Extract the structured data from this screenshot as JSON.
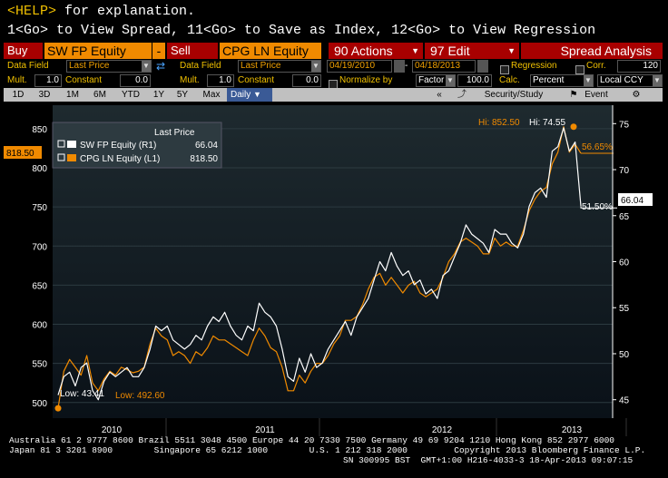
{
  "help": {
    "key": "<HELP>",
    "text": " for explanation.",
    "line2": "1<Go> to View Spread, 11<Go> to Save as Index, 12<Go> to View Regression"
  },
  "toolbar": {
    "buy_label": "Buy",
    "ticker1": "SW FP Equity",
    "minus": "-",
    "sell_label": "Sell",
    "ticker2": "CPG LN Equity",
    "actions": "90 Actions",
    "edit": "97 Edit",
    "spread": "Spread Analysis"
  },
  "params": {
    "data_field_label": "Data Field",
    "data_field1": "Last Price",
    "data_field_label2": "Data Field",
    "data_field2": "Last Price",
    "start_date": "04/19/2010",
    "end_date": "04/18/2013",
    "regression_label": "Regression",
    "corr_label": "Corr.",
    "corr_value": "120",
    "mult_label": "Mult.",
    "mult1": "1.0",
    "constant_label": "Constant",
    "constant1": "0.0",
    "mult_label2": "Mult.",
    "mult2": "1.0",
    "constant_label2": "Constant",
    "constant2": "0.0",
    "normalize_label": "Normalize by",
    "factor": "Factor",
    "factor_value": "100.0",
    "calc_label": "Calc.",
    "calc_value": "Percent",
    "ccy": "Local CCY"
  },
  "tabs": [
    "1D",
    "3D",
    "1M",
    "6M",
    "YTD",
    "1Y",
    "5Y",
    "Max"
  ],
  "period": "Daily",
  "sec_study": "Security/Study",
  "event": "Event",
  "legend": {
    "title": "Last Price",
    "s1": "SW FP Equity  (R1)",
    "s1_val": "66.04",
    "s2": "CPG LN Equity  (L1)",
    "s2_val": "818.50"
  },
  "annotations": {
    "hi_left": "Hi: 852.50",
    "hi_right": "Hi: 74.55",
    "pct_high": "56.65%",
    "pct_low": "51.50%",
    "low_right": "Low: 43.41",
    "low_left": "Low: 492.60",
    "left_tag": "818.50",
    "right_tag": "66.04"
  },
  "chart_data": {
    "type": "line",
    "left_axis": {
      "ticks": [
        500,
        550,
        600,
        650,
        700,
        750,
        800,
        850
      ],
      "ylim": [
        480,
        880
      ]
    },
    "right_axis": {
      "ticks": [
        45,
        50,
        55,
        60,
        65,
        70,
        75
      ],
      "ylim": [
        43,
        77
      ]
    },
    "x_labels": [
      "2010",
      "2011",
      "2012",
      "2013"
    ],
    "series": [
      {
        "name": "SW FP Equity (R1)",
        "axis": "right",
        "color": "#ffffff",
        "values": [
          45.5,
          47.5,
          48,
          46.5,
          48.5,
          49,
          46,
          45,
          47,
          48,
          47.5,
          48,
          48.5,
          47.5,
          47.5,
          48.5,
          50.5,
          53,
          52.5,
          53,
          51.5,
          51,
          50.5,
          51,
          52,
          51.5,
          53,
          54,
          53.5,
          54.5,
          53,
          52,
          51.5,
          53,
          52.5,
          55.5,
          54.5,
          54,
          53,
          50.5,
          47.5,
          47,
          49.5,
          48,
          50,
          48.5,
          49,
          50.5,
          51.5,
          52.5,
          53.5,
          52,
          54,
          55,
          56,
          58,
          60,
          59,
          61,
          59.5,
          58.5,
          59,
          57.5,
          58,
          56.5,
          57,
          56,
          58.5,
          59,
          60.5,
          62,
          64,
          63,
          62.5,
          62,
          61,
          63.5,
          63,
          63,
          62,
          61.5,
          63,
          66,
          67.5,
          68,
          67,
          72,
          72.5,
          74.55,
          72,
          73,
          66.04
        ]
      },
      {
        "name": "CPG LN Equity (L1)",
        "axis": "left",
        "color": "#f08a00",
        "values": [
          492.6,
          540,
          555,
          545,
          535,
          560,
          525,
          515,
          530,
          540,
          535,
          545,
          542,
          538,
          540,
          545,
          575,
          595,
          585,
          580,
          560,
          565,
          560,
          550,
          565,
          560,
          570,
          585,
          580,
          580,
          575,
          570,
          565,
          560,
          580,
          595,
          585,
          570,
          565,
          545,
          515,
          515,
          535,
          525,
          540,
          550,
          550,
          560,
          575,
          585,
          605,
          605,
          610,
          625,
          645,
          660,
          665,
          650,
          660,
          650,
          640,
          650,
          655,
          640,
          635,
          640,
          645,
          660,
          680,
          690,
          705,
          710,
          705,
          700,
          690,
          690,
          710,
          700,
          705,
          700,
          700,
          720,
          745,
          760,
          770,
          775,
          805,
          820,
          852.5,
          820,
          830,
          818.5
        ]
      }
    ]
  },
  "footer": {
    "line1": "Australia 61 2 9777 8600 Brazil 5511 3048 4500 Europe 44 20 7330 7500 Germany 49 69 9204 1210 Hong Kong 852 2977 6000",
    "line2": "Japan 81 3 3201 8900        Singapore 65 6212 1000        U.S. 1 212 318 2000         Copyright 2013 Bloomberg Finance L.P.",
    "line3": "SN 300995 BST  GMT+1:00 H216-4033-3 18-Apr-2013 09:07:15"
  }
}
